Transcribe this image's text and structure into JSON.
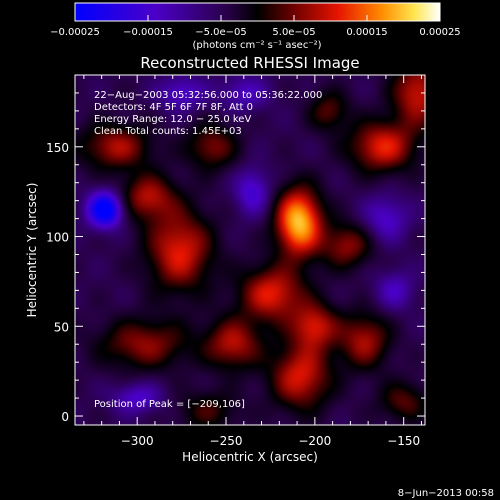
{
  "chart_data": {
    "type": "heatmap",
    "title": "Reconstructed RHESSI Image",
    "xlabel": "Heliocentric X (arcsec)",
    "ylabel": "Heliocentric Y (arcsec)",
    "xlim": [
      -335,
      -138
    ],
    "ylim": [
      -5,
      190
    ],
    "x_ticks": [
      -300,
      -250,
      -200,
      -150
    ],
    "x_tick_labels": [
      "−300",
      "−250",
      "−200",
      "−150"
    ],
    "y_ticks": [
      0,
      50,
      100,
      150
    ],
    "y_tick_labels": [
      "0",
      "50",
      "100",
      "150"
    ],
    "colorbar": {
      "range": [
        -0.00025,
        0.00025
      ],
      "ticks": [
        -0.00025,
        -0.00015,
        -5e-05,
        5e-05,
        0.00015,
        0.00025
      ],
      "tick_labels": [
        "−0.00025",
        "−0.00015",
        "−5.0e−05",
        "5.0e−05",
        "0.00015",
        "0.00025"
      ],
      "unit_label": "(photons cm⁻² s⁻¹ asec⁻²)"
    },
    "info_lines": [
      "22−Aug−2003 05:32:56.000 to 05:36:22.000",
      "Detectors: 4F 5F 6F 7F 8F, Att 0",
      "Energy Range: 12.0 − 25.0 keV",
      "Clean     Total counts: 1.45E+03"
    ],
    "peak_label": "Position of Peak = [−209,106]",
    "peak": [
      -209,
      106
    ],
    "blobs": [
      {
        "x": -209,
        "y": 108,
        "sx": 9,
        "sy": 13,
        "a": 1.0
      },
      {
        "x": -224,
        "y": 68,
        "sx": 13,
        "sy": 11,
        "a": 0.62
      },
      {
        "x": -276,
        "y": 92,
        "sx": 13,
        "sy": 16,
        "a": 0.62
      },
      {
        "x": -296,
        "y": 40,
        "sx": 18,
        "sy": 10,
        "a": 0.45
      },
      {
        "x": -312,
        "y": 150,
        "sx": 14,
        "sy": 9,
        "a": 0.5
      },
      {
        "x": -294,
        "y": 122,
        "sx": 11,
        "sy": 9,
        "a": 0.5
      },
      {
        "x": -258,
        "y": 150,
        "sx": 10,
        "sy": 9,
        "a": 0.42
      },
      {
        "x": -246,
        "y": 40,
        "sx": 11,
        "sy": 10,
        "a": 0.52
      },
      {
        "x": -208,
        "y": 22,
        "sx": 12,
        "sy": 13,
        "a": 0.6
      },
      {
        "x": -200,
        "y": 50,
        "sx": 9,
        "sy": 9,
        "a": 0.55
      },
      {
        "x": -172,
        "y": 42,
        "sx": 10,
        "sy": 11,
        "a": 0.5
      },
      {
        "x": -162,
        "y": 150,
        "sx": 13,
        "sy": 10,
        "a": 0.62
      },
      {
        "x": -142,
        "y": 180,
        "sx": 10,
        "sy": 13,
        "a": 0.58
      },
      {
        "x": -182,
        "y": 95,
        "sx": 10,
        "sy": 9,
        "a": 0.45
      },
      {
        "x": -192,
        "y": 170,
        "sx": 8,
        "sy": 8,
        "a": 0.35
      },
      {
        "x": -150,
        "y": 8,
        "sx": 10,
        "sy": 8,
        "a": 0.35
      },
      {
        "x": -260,
        "y": 3,
        "sx": 12,
        "sy": 8,
        "a": 0.3
      },
      {
        "x": -318,
        "y": 115,
        "sx": 7,
        "sy": 7,
        "a": -0.9
      },
      {
        "x": -275,
        "y": 180,
        "sx": 9,
        "sy": 7,
        "a": -0.35
      },
      {
        "x": -235,
        "y": 125,
        "sx": 7,
        "sy": 9,
        "a": -0.4
      },
      {
        "x": -160,
        "y": 110,
        "sx": 9,
        "sy": 9,
        "a": -0.35
      },
      {
        "x": -300,
        "y": 10,
        "sx": 10,
        "sy": 6,
        "a": -0.35
      },
      {
        "x": -155,
        "y": 70,
        "sx": 8,
        "sy": 8,
        "a": -0.3
      },
      {
        "x": -240,
        "y": 180,
        "sx": 10,
        "sy": 7,
        "a": -0.3
      }
    ]
  },
  "footer": {
    "date_stamp": "8−Jun−2013 00:58"
  }
}
